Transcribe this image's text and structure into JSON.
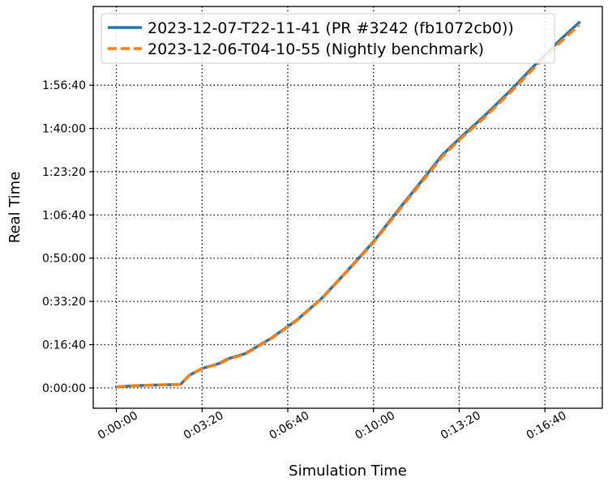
{
  "chart_data": {
    "type": "line",
    "xlabel": "Simulation Time",
    "ylabel": "Real Time",
    "x_unit": "seconds",
    "y_unit": "seconds",
    "xlim": [
      -1080,
      21600
    ],
    "ylim": [
      -1200,
      8400
    ],
    "x_ticks": [
      {
        "value": 0,
        "label": "0:00:00"
      },
      {
        "value": 200,
        "label": "0:03:20"
      },
      {
        "value": 400,
        "label": "0:06:40"
      },
      {
        "value": 600,
        "label": "0:10:00"
      },
      {
        "value": 800,
        "label": "0:13:20"
      },
      {
        "value": 1000,
        "label": "0:16:40"
      }
    ],
    "y_ticks": [
      {
        "value": 0,
        "label": "0:00:00"
      },
      {
        "value": 1000,
        "label": "0:16:40"
      },
      {
        "value": 2000,
        "label": "0:33:20"
      },
      {
        "value": 3000,
        "label": "0:50:00"
      },
      {
        "value": 4000,
        "label": "1:06:40"
      },
      {
        "value": 5000,
        "label": "1:23:20"
      },
      {
        "value": 6000,
        "label": "1:40:00"
      },
      {
        "value": 7000,
        "label": "1:56:40"
      }
    ],
    "grid": true,
    "legend_position": "top-left",
    "series": [
      {
        "name": "2023-12-07-T22-11-41 (PR #3242 (fb1072cb0))",
        "color": "#1f77b4",
        "style": "solid",
        "x": [
          0,
          40,
          100,
          150,
          170,
          200,
          240,
          260,
          300,
          360,
          420,
          480,
          540,
          600,
          660,
          720,
          760,
          800,
          860,
          920,
          980,
          1040,
          1080
        ],
        "y": [
          20,
          50,
          70,
          80,
          290,
          450,
          565,
          670,
          790,
          1140,
          1560,
          2080,
          2720,
          3380,
          4140,
          4880,
          5380,
          5760,
          6300,
          6880,
          7500,
          8090,
          8450
        ]
      },
      {
        "name": "2023-12-06-T04-10-55 (Nightly benchmark)",
        "color": "#ff7f0e",
        "style": "dashed",
        "x": [
          0,
          40,
          100,
          150,
          170,
          200,
          240,
          260,
          300,
          360,
          420,
          480,
          540,
          600,
          660,
          720,
          760,
          800,
          860,
          920,
          980,
          1040,
          1080
        ],
        "y": [
          20,
          50,
          70,
          80,
          290,
          450,
          555,
          660,
          780,
          1130,
          1550,
          2070,
          2710,
          3360,
          4110,
          4850,
          5340,
          5730,
          6260,
          6840,
          7450,
          8030,
          8390
        ]
      }
    ]
  }
}
